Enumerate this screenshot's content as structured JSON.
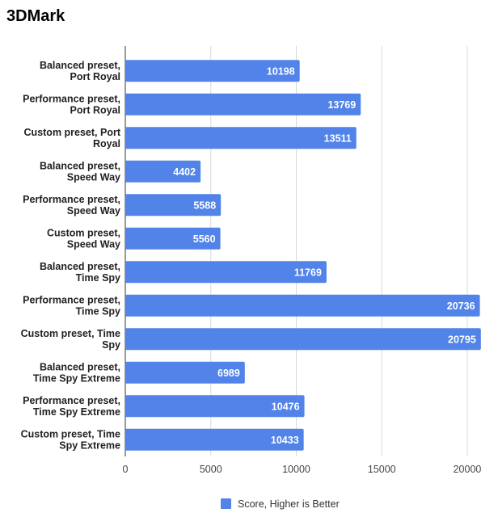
{
  "chart_data": {
    "type": "bar",
    "orientation": "horizontal",
    "title": "3DMark",
    "categories": [
      [
        "Balanced preset,",
        "Port Royal"
      ],
      [
        "Performance preset,",
        "Port Royal"
      ],
      [
        "Custom preset, Port",
        "Royal"
      ],
      [
        "Balanced preset,",
        "Speed Way"
      ],
      [
        "Performance preset,",
        "Speed Way"
      ],
      [
        "Custom preset,",
        "Speed Way"
      ],
      [
        "Balanced preset,",
        "Time Spy"
      ],
      [
        "Performance preset,",
        "Time Spy"
      ],
      [
        "Custom preset, Time",
        "Spy"
      ],
      [
        "Balanced preset,",
        "Time Spy Extreme"
      ],
      [
        "Performance preset,",
        "Time Spy Extreme"
      ],
      [
        "Custom preset, Time",
        "Spy Extreme"
      ]
    ],
    "series": [
      {
        "name": "Score, Higher is Better",
        "values": [
          10198,
          13769,
          13511,
          4402,
          5588,
          5560,
          11769,
          20736,
          20795,
          6989,
          10476,
          10433
        ]
      }
    ],
    "xlim": [
      0,
      20000
    ],
    "xticks": [
      0,
      5000,
      10000,
      15000,
      20000
    ],
    "xlabel": "",
    "ylabel": "",
    "grid": true,
    "legend": "bottom",
    "colors": {
      "bar": "#5183e8",
      "grid": "#d9d9d9",
      "axis": "#333333"
    }
  }
}
